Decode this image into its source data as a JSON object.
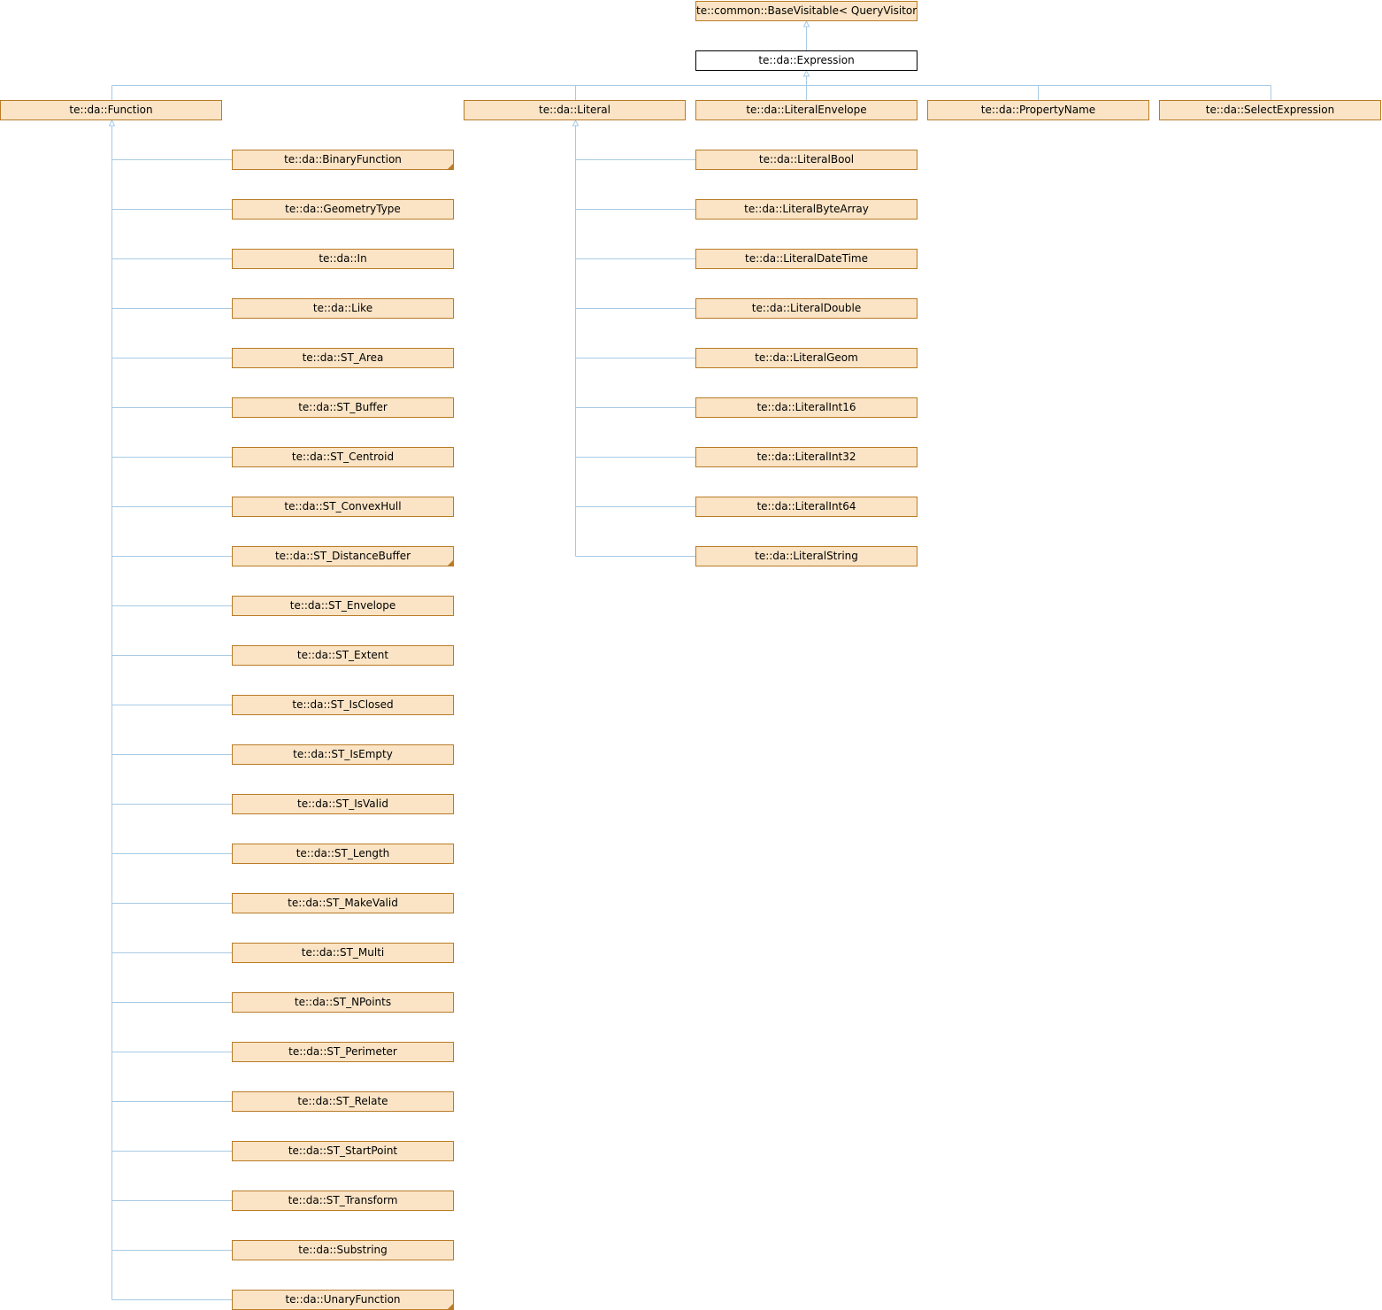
{
  "colors": {
    "node_fill": "#fbe4c5",
    "node_border": "#b97b27",
    "edge": "#a8cae4",
    "current_fill": "#ffffff",
    "current_border": "#000000"
  },
  "nodes": {
    "base": "te::common::BaseVisitable< QueryVisitor >",
    "expression": "te::da::Expression",
    "function": "te::da::Function",
    "literal": "te::da::Literal",
    "literal_envelope": "te::da::LiteralEnvelope",
    "property_name": "te::da::PropertyName",
    "select_expression": "te::da::SelectExpression",
    "function_children": [
      "te::da::BinaryFunction",
      "te::da::GeometryType",
      "te::da::In",
      "te::da::Like",
      "te::da::ST_Area",
      "te::da::ST_Buffer",
      "te::da::ST_Centroid",
      "te::da::ST_ConvexHull",
      "te::da::ST_DistanceBuffer",
      "te::da::ST_Envelope",
      "te::da::ST_Extent",
      "te::da::ST_IsClosed",
      "te::da::ST_IsEmpty",
      "te::da::ST_IsValid",
      "te::da::ST_Length",
      "te::da::ST_MakeValid",
      "te::da::ST_Multi",
      "te::da::ST_NPoints",
      "te::da::ST_Perimeter",
      "te::da::ST_Relate",
      "te::da::ST_StartPoint",
      "te::da::ST_Transform",
      "te::da::Substring",
      "te::da::UnaryFunction"
    ],
    "literal_children": [
      "te::da::LiteralBool",
      "te::da::LiteralByteArray",
      "te::da::LiteralDateTime",
      "te::da::LiteralDouble",
      "te::da::LiteralGeom",
      "te::da::LiteralInt16",
      "te::da::LiteralInt32",
      "te::da::LiteralInt64",
      "te::da::LiteralString"
    ],
    "has_more_subclasses": [
      "te::da::BinaryFunction",
      "te::da::ST_DistanceBuffer",
      "te::da::UnaryFunction"
    ]
  }
}
